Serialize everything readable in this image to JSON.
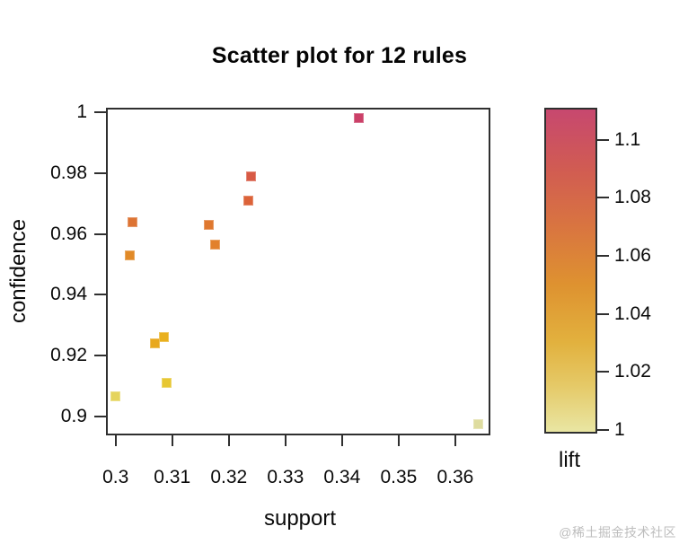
{
  "watermark": "@稀土掘金技术社区",
  "colors": {
    "background": "#ffffff",
    "frame": "#2f2f2f",
    "text": "#000000",
    "watermark": "#bdbdbd"
  },
  "chart_data": {
    "type": "scatter",
    "title": "Scatter plot for 12 rules",
    "xlabel": "support",
    "ylabel": "confidence",
    "grid": false,
    "marker": "filled-square",
    "legend_position": "right",
    "xlim": [
      0.2983,
      0.3662
    ],
    "ylim": [
      0.8938,
      1.0015
    ],
    "x_ticks": [
      {
        "value": 0.3,
        "label": "0.3"
      },
      {
        "value": 0.31,
        "label": "0.31"
      },
      {
        "value": 0.32,
        "label": "0.32"
      },
      {
        "value": 0.33,
        "label": "0.33"
      },
      {
        "value": 0.34,
        "label": "0.34"
      },
      {
        "value": 0.35,
        "label": "0.35"
      },
      {
        "value": 0.36,
        "label": "0.36"
      }
    ],
    "y_ticks": [
      {
        "value": 0.9,
        "label": "0.9"
      },
      {
        "value": 0.92,
        "label": "0.92"
      },
      {
        "value": 0.94,
        "label": "0.94"
      },
      {
        "value": 0.96,
        "label": "0.96"
      },
      {
        "value": 0.98,
        "label": "0.98"
      },
      {
        "value": 1.0,
        "label": "1"
      }
    ],
    "points": [
      {
        "support": 0.343,
        "confidence": 0.998,
        "lift": 1.11,
        "color": "#cb4068"
      },
      {
        "support": 0.324,
        "confidence": 0.979,
        "lift": 1.09,
        "color": "#d85a45"
      },
      {
        "support": 0.3235,
        "confidence": 0.971,
        "lift": 1.085,
        "color": "#dc6339"
      },
      {
        "support": 0.303,
        "confidence": 0.964,
        "lift": 1.075,
        "color": "#dd7434"
      },
      {
        "support": 0.3165,
        "confidence": 0.963,
        "lift": 1.072,
        "color": "#df782f"
      },
      {
        "support": 0.3175,
        "confidence": 0.9565,
        "lift": 1.066,
        "color": "#e2812c"
      },
      {
        "support": 0.3025,
        "confidence": 0.953,
        "lift": 1.06,
        "color": "#e18a28"
      },
      {
        "support": 0.3085,
        "confidence": 0.926,
        "lift": 1.043,
        "color": "#e9b01e"
      },
      {
        "support": 0.307,
        "confidence": 0.924,
        "lift": 1.04,
        "color": "#e8a81e"
      },
      {
        "support": 0.309,
        "confidence": 0.911,
        "lift": 1.023,
        "color": "#e7c733"
      },
      {
        "support": 0.3,
        "confidence": 0.9065,
        "lift": 1.015,
        "color": "#e5d45c"
      },
      {
        "support": 0.364,
        "confidence": 0.8975,
        "lift": 1.0,
        "color": "#dedc9f"
      }
    ],
    "legend": {
      "label": "lift",
      "range": [
        0.9988,
        1.111
      ],
      "ticks": [
        {
          "value": 1.0,
          "label": "1"
        },
        {
          "value": 1.02,
          "label": "1.02"
        },
        {
          "value": 1.04,
          "label": "1.04"
        },
        {
          "value": 1.06,
          "label": "1.06"
        },
        {
          "value": 1.08,
          "label": "1.08"
        },
        {
          "value": 1.1,
          "label": "1.1"
        }
      ],
      "gradient_stops": [
        {
          "pos": 0,
          "color": "#c7486f"
        },
        {
          "pos": 18.7,
          "color": "#d15c52"
        },
        {
          "pos": 36.5,
          "color": "#d97540"
        },
        {
          "pos": 54.4,
          "color": "#de9230"
        },
        {
          "pos": 72.2,
          "color": "#e2b13e"
        },
        {
          "pos": 85.6,
          "color": "#e5c967"
        },
        {
          "pos": 100,
          "color": "#e9e6a3"
        }
      ]
    }
  }
}
